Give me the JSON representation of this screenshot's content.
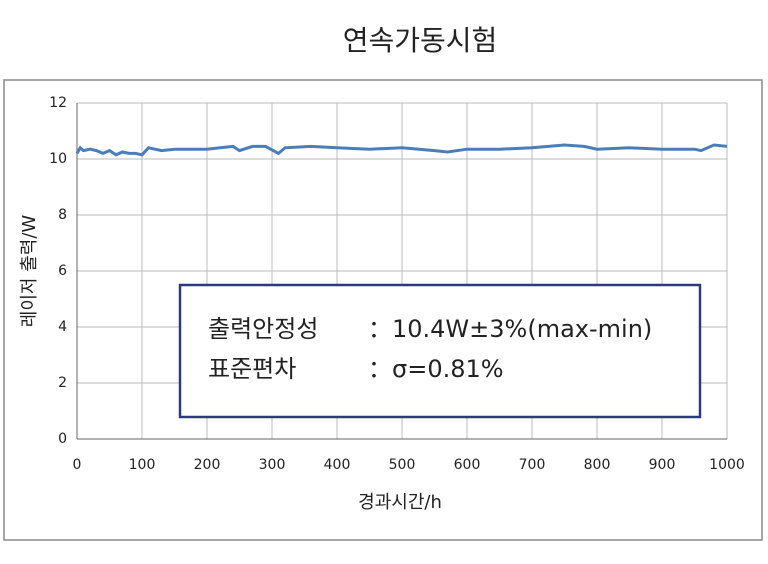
{
  "chart_data": {
    "type": "line",
    "title": "연속가동시험",
    "x_label": "경과시간/h",
    "y_label": "레이저 출력/W",
    "x": [
      0,
      5,
      10,
      20,
      30,
      40,
      50,
      60,
      70,
      80,
      90,
      100,
      110,
      130,
      150,
      200,
      220,
      240,
      250,
      270,
      290,
      310,
      320,
      360,
      400,
      450,
      500,
      550,
      570,
      600,
      650,
      700,
      750,
      780,
      800,
      850,
      900,
      950,
      960,
      980,
      1000
    ],
    "series": [
      {
        "name": "레이저 출력",
        "color": "#4a7ebb",
        "values": [
          10.2,
          10.4,
          10.3,
          10.35,
          10.3,
          10.2,
          10.3,
          10.15,
          10.25,
          10.2,
          10.2,
          10.15,
          10.4,
          10.3,
          10.35,
          10.35,
          10.4,
          10.45,
          10.3,
          10.45,
          10.45,
          10.2,
          10.4,
          10.45,
          10.4,
          10.35,
          10.4,
          10.3,
          10.25,
          10.35,
          10.35,
          10.4,
          10.5,
          10.45,
          10.35,
          10.4,
          10.35,
          10.35,
          10.3,
          10.5,
          10.45
        ]
      }
    ],
    "xlim": [
      0,
      1000
    ],
    "xticks": [
      0,
      100,
      200,
      300,
      400,
      500,
      600,
      700,
      800,
      900,
      1000
    ],
    "ylim": [
      0,
      12
    ],
    "yticks": [
      0,
      2,
      4,
      6,
      8,
      10,
      12
    ],
    "grid": true,
    "annotations": [
      {
        "label": "출력안정성",
        "text": "：10.4W±3%(max-min)"
      },
      {
        "label": "표준편차",
        "text": "：σ=0.81%"
      }
    ]
  }
}
